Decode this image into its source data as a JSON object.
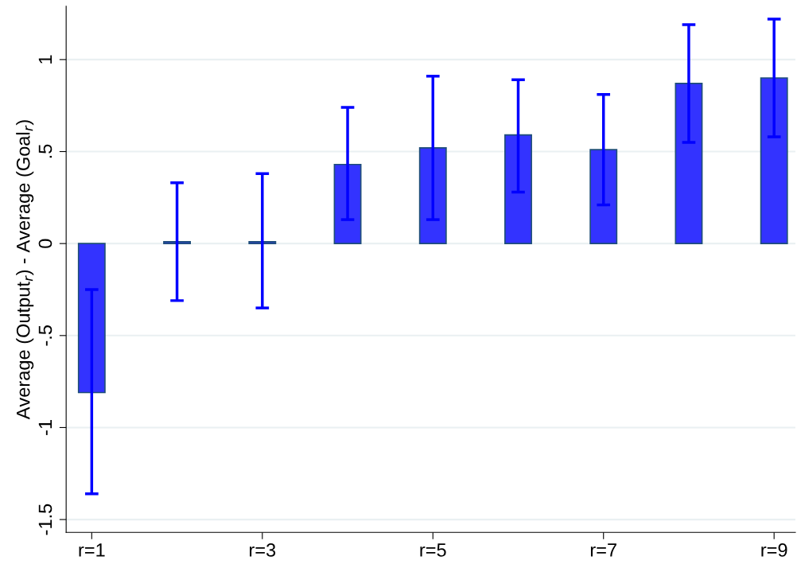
{
  "chart_data": {
    "type": "bar",
    "ylabel": "Average (Output$_{r}$) - Average (Goal$_{r}$)",
    "categories": [
      "r=1",
      null,
      "r=3",
      null,
      "r=5",
      null,
      "r=7",
      null,
      "r=9"
    ],
    "values": [
      -0.81,
      0.01,
      0.01,
      0.43,
      0.52,
      0.59,
      0.51,
      0.87,
      0.9
    ],
    "errors": [
      [
        -1.36,
        -0.25
      ],
      [
        -0.31,
        0.33
      ],
      [
        -0.35,
        0.38
      ],
      [
        0.13,
        0.74
      ],
      [
        0.13,
        0.91
      ],
      [
        0.28,
        0.89
      ],
      [
        0.21,
        0.81
      ],
      [
        0.55,
        1.19
      ],
      [
        0.58,
        1.22
      ]
    ],
    "color": "#3333ff",
    "ylim": [
      -1.57,
      1.29
    ],
    "yticks": [
      {
        "value": -1.5,
        "label": "-1.5"
      },
      {
        "value": -1,
        "label": "-1"
      },
      {
        "value": -0.5,
        "label": "-.5"
      },
      0,
      {
        "value": 0.5,
        "label": ".5"
      },
      1
    ],
    "grid": "y"
  }
}
